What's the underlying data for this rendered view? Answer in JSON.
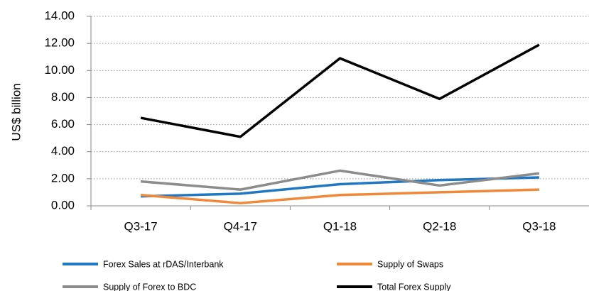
{
  "chart_data": {
    "type": "line",
    "y_label": "US$ billion",
    "categories": [
      "Q3-17",
      "Q4-17",
      "Q1-18",
      "Q2-18",
      "Q3-18"
    ],
    "series": [
      {
        "name": "Forex Sales at rDAS/Interbank",
        "color": "#1f78c1",
        "values": [
          0.7,
          0.9,
          1.6,
          1.9,
          2.1
        ]
      },
      {
        "name": "Supply of Swaps",
        "color": "#f0883a",
        "values": [
          0.8,
          0.2,
          0.8,
          1.0,
          1.2
        ]
      },
      {
        "name": "Supply of Forex to BDC",
        "color": "#8c8c8c",
        "values": [
          1.8,
          1.2,
          2.6,
          1.5,
          2.4
        ]
      },
      {
        "name": "Total Forex Supply",
        "color": "#000000",
        "values": [
          6.5,
          5.1,
          10.9,
          7.9,
          11.9
        ]
      }
    ],
    "ylim": [
      0,
      14
    ],
    "yticks": [
      {
        "value": 0,
        "label": "0.00"
      },
      {
        "value": 2,
        "label": "2.00"
      },
      {
        "value": 4,
        "label": "4.00"
      },
      {
        "value": 6,
        "label": "6.00"
      },
      {
        "value": 8,
        "label": "8.00"
      },
      {
        "value": 10,
        "label": "10.00"
      },
      {
        "value": 12,
        "label": "12.00"
      },
      {
        "value": 14,
        "label": "14.00"
      }
    ],
    "grid": true
  }
}
